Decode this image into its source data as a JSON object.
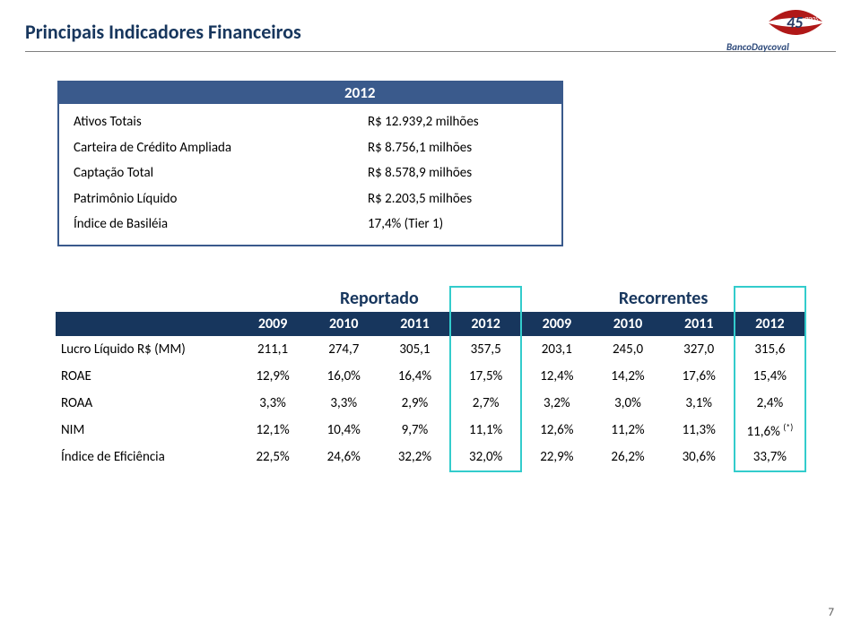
{
  "title": "Principais Indicadores Financeiros",
  "page_number": "7",
  "colors": {
    "title": "#17365d",
    "hr": "#7f7f7f",
    "navy": "#3a5a8c",
    "dark_navy": "#17365d",
    "highlight": "#33cccc",
    "text": "#000000",
    "page_num": "#585858",
    "bg": "#ffffff"
  },
  "logo": {
    "years": "45",
    "years_label": "anos",
    "bank": "BancoDaycoval"
  },
  "summary": {
    "year": "2012",
    "rows": [
      {
        "label": "Ativos Totais",
        "value": "R$ 12.939,2 milhões"
      },
      {
        "label": "Carteira de Crédito Ampliada",
        "value": "R$ 8.756,1 milhões"
      },
      {
        "label": "Captação Total",
        "value": "R$ 8.578,9 milhões"
      },
      {
        "label": "Patrimônio Líquido",
        "value": "R$ 2.203,5  milhões"
      },
      {
        "label": "Índice de Basiléia",
        "value": "17,4% (Tier 1)"
      }
    ]
  },
  "data_table": {
    "group_headers": [
      "Reportado",
      "Recorrentes"
    ],
    "year_headers": [
      "2009",
      "2010",
      "2011",
      "2012",
      "2009",
      "2010",
      "2011",
      "2012"
    ],
    "highlight_2012": true,
    "rows": [
      {
        "label": "Lucro Líquido R$ (MM)",
        "cells": [
          "211,1",
          "274,7",
          "305,1",
          "357,5",
          "203,1",
          "245,0",
          "327,0",
          "315,6"
        ]
      },
      {
        "label": "ROAE",
        "cells": [
          "12,9%",
          "16,0%",
          "16,4%",
          "17,5%",
          "12,4%",
          "14,2%",
          "17,6%",
          "15,4%"
        ]
      },
      {
        "label": "ROAA",
        "cells": [
          "3,3%",
          "3,3%",
          "2,9%",
          "2,7%",
          "3,2%",
          "3,0%",
          "3,1%",
          "2,4%"
        ]
      },
      {
        "label": "NIM",
        "cells": [
          "12,1%",
          "10,4%",
          "9,7%",
          "11,1%",
          "12,6%",
          "11,2%",
          "11,3%",
          "11,6% "
        ],
        "suffix_last": "(*)"
      },
      {
        "label": "Índice de Eficiência",
        "cells": [
          "22,5%",
          "24,6%",
          "32,2%",
          "32,0%",
          "22,9%",
          "26,2%",
          "30,6%",
          "33,7%"
        ]
      }
    ]
  }
}
